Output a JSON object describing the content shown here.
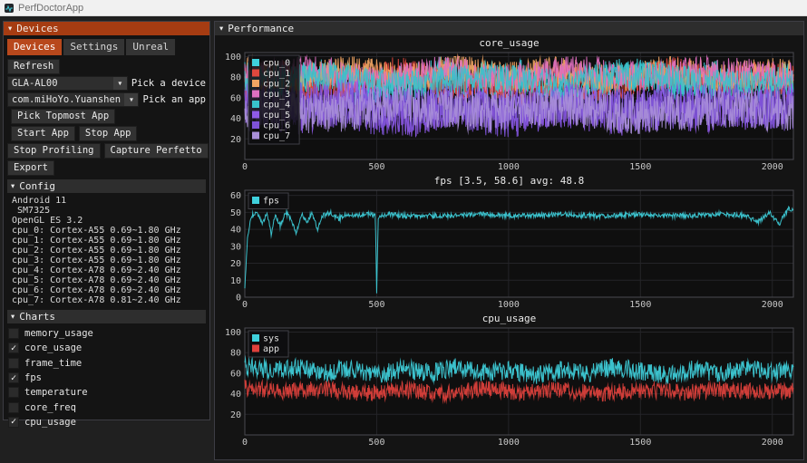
{
  "window_title": "PerfDoctorApp",
  "icons": {
    "collapse": "▼",
    "combo_arrow": "▼",
    "check": "✓"
  },
  "devices_window": {
    "title": "Devices",
    "tabs": [
      "Devices",
      "Settings",
      "Unreal"
    ],
    "active_tab": "Devices",
    "refresh_label": "Refresh",
    "device_combo": {
      "value": "GLA-AL00",
      "label": "Pick a device"
    },
    "app_combo": {
      "value": "com.miHoYo.Yuanshen",
      "label": "Pick an app"
    },
    "buttons": {
      "pick_topmost": "Pick Topmost App",
      "start_app": "Start App",
      "stop_app": "Stop App",
      "stop_profiling": "Stop Profiling",
      "capture_perfetto": "Capture Perfetto",
      "export": "Export"
    },
    "config": {
      "header": "Config",
      "lines": [
        "Android 11",
        " SM7325",
        "OpenGL ES 3.2",
        "cpu_0: Cortex-A55 0.69~1.80 GHz",
        "cpu_1: Cortex-A55 0.69~1.80 GHz",
        "cpu_2: Cortex-A55 0.69~1.80 GHz",
        "cpu_3: Cortex-A55 0.69~1.80 GHz",
        "cpu_4: Cortex-A78 0.69~2.40 GHz",
        "cpu_5: Cortex-A78 0.69~2.40 GHz",
        "cpu_6: Cortex-A78 0.69~2.40 GHz",
        "cpu_7: Cortex-A78 0.81~2.40 GHz"
      ]
    },
    "charts_section": {
      "header": "Charts",
      "items": [
        {
          "label": "memory_usage",
          "checked": false
        },
        {
          "label": "core_usage",
          "checked": true
        },
        {
          "label": "frame_time",
          "checked": false
        },
        {
          "label": "fps",
          "checked": true
        },
        {
          "label": "temperature",
          "checked": false
        },
        {
          "label": "core_freq",
          "checked": false
        },
        {
          "label": "cpu_usage",
          "checked": true
        }
      ]
    }
  },
  "performance_window": {
    "title": "Performance"
  },
  "chart_data": [
    {
      "id": "core_usage",
      "type": "scatter",
      "title": "core_usage",
      "xlabel": "",
      "ylabel": "",
      "xlim": [
        0,
        2080
      ],
      "ylim": [
        0,
        104
      ],
      "x_ticks": [
        0,
        500,
        1000,
        1500,
        2000
      ],
      "y_ticks": [
        20,
        40,
        60,
        80,
        100
      ],
      "clamp": [
        0,
        100
      ],
      "grid": true,
      "legend_position": "inside-top-left",
      "dx": 2,
      "seed": 7,
      "series": [
        {
          "name": "cpu_0",
          "color": "#3fd0dc",
          "noise": 17,
          "keypoints": [
            [
              0,
              78
            ],
            [
              150,
              70
            ],
            [
              300,
              82
            ],
            [
              450,
              66
            ],
            [
              600,
              75
            ],
            [
              750,
              85
            ],
            [
              900,
              72
            ],
            [
              1050,
              80
            ],
            [
              1200,
              68
            ],
            [
              1350,
              78
            ],
            [
              1500,
              84
            ],
            [
              1650,
              74
            ],
            [
              1800,
              80
            ],
            [
              1950,
              72
            ],
            [
              2080,
              78
            ]
          ]
        },
        {
          "name": "cpu_1",
          "color": "#e0483e",
          "noise": 17,
          "keypoints": [
            [
              0,
              72
            ],
            [
              150,
              80
            ],
            [
              300,
              68
            ],
            [
              450,
              78
            ],
            [
              600,
              84
            ],
            [
              750,
              70
            ],
            [
              900,
              78
            ],
            [
              1050,
              66
            ],
            [
              1200,
              80
            ],
            [
              1350,
              72
            ],
            [
              1500,
              78
            ],
            [
              1650,
              84
            ],
            [
              1800,
              70
            ],
            [
              1950,
              80
            ],
            [
              2080,
              74
            ]
          ]
        },
        {
          "name": "cpu_2",
          "color": "#f2a563",
          "noise": 15,
          "keypoints": [
            [
              0,
              85
            ],
            [
              200,
              76
            ],
            [
              400,
              88
            ],
            [
              600,
              78
            ],
            [
              800,
              90
            ],
            [
              1000,
              80
            ],
            [
              1200,
              86
            ],
            [
              1400,
              76
            ],
            [
              1600,
              88
            ],
            [
              1800,
              80
            ],
            [
              2080,
              85
            ]
          ]
        },
        {
          "name": "cpu_3",
          "color": "#de6fc0",
          "noise": 15,
          "keypoints": [
            [
              0,
              80
            ],
            [
              250,
              88
            ],
            [
              500,
              76
            ],
            [
              750,
              86
            ],
            [
              1000,
              78
            ],
            [
              1250,
              88
            ],
            [
              1500,
              80
            ],
            [
              1750,
              86
            ],
            [
              2080,
              80
            ]
          ]
        },
        {
          "name": "cpu_4",
          "color": "#38c2cc",
          "noise": 15,
          "keypoints": [
            [
              0,
              74
            ],
            [
              300,
              82
            ],
            [
              600,
              70
            ],
            [
              900,
              80
            ],
            [
              1200,
              74
            ],
            [
              1500,
              82
            ],
            [
              1800,
              72
            ],
            [
              2080,
              78
            ]
          ]
        },
        {
          "name": "cpu_5",
          "color": "#8f5ae8",
          "noise": 22,
          "keypoints": [
            [
              0,
              55
            ],
            [
              200,
              45
            ],
            [
              400,
              58
            ],
            [
              600,
              42
            ],
            [
              800,
              52
            ],
            [
              1000,
              46
            ],
            [
              1200,
              55
            ],
            [
              1400,
              44
            ],
            [
              1600,
              52
            ],
            [
              1800,
              46
            ],
            [
              2080,
              52
            ]
          ]
        },
        {
          "name": "cpu_6",
          "color": "#7e52d8",
          "noise": 22,
          "keypoints": [
            [
              0,
              48
            ],
            [
              250,
              56
            ],
            [
              500,
              44
            ],
            [
              750,
              52
            ],
            [
              1000,
              42
            ],
            [
              1250,
              52
            ],
            [
              1500,
              46
            ],
            [
              1750,
              54
            ],
            [
              2080,
              48
            ]
          ]
        },
        {
          "name": "cpu_7",
          "color": "#a98fd9",
          "noise": 20,
          "keypoints": [
            [
              0,
              50
            ],
            [
              300,
              44
            ],
            [
              600,
              54
            ],
            [
              900,
              46
            ],
            [
              1200,
              52
            ],
            [
              1500,
              44
            ],
            [
              1800,
              52
            ],
            [
              2080,
              46
            ]
          ]
        }
      ]
    },
    {
      "id": "fps",
      "type": "line",
      "title": "fps [3.5, 58.6] avg: 48.8",
      "stats": {
        "min": 3.5,
        "max": 58.6,
        "avg": 48.8
      },
      "xlabel": "",
      "ylabel": "",
      "xlim": [
        0,
        2080
      ],
      "ylim": [
        0,
        63
      ],
      "x_ticks": [
        0,
        500,
        1000,
        1500,
        2000
      ],
      "y_ticks": [
        0,
        10,
        20,
        30,
        40,
        50,
        60
      ],
      "clamp": [
        0,
        58.6
      ],
      "grid": true,
      "legend_position": "inside-top-left",
      "dx": 2,
      "seed": 21,
      "series": [
        {
          "name": "fps",
          "color": "#3fd0dc",
          "noise": 1.4,
          "keypoints": [
            [
              0,
              5
            ],
            [
              10,
              34
            ],
            [
              25,
              48
            ],
            [
              45,
              50
            ],
            [
              65,
              44
            ],
            [
              85,
              49
            ],
            [
              100,
              37
            ],
            [
              115,
              48
            ],
            [
              135,
              42
            ],
            [
              155,
              50
            ],
            [
              175,
              46
            ],
            [
              195,
              38
            ],
            [
              215,
              49
            ],
            [
              235,
              44
            ],
            [
              255,
              50
            ],
            [
              275,
              40
            ],
            [
              295,
              48
            ],
            [
              325,
              50
            ],
            [
              355,
              46
            ],
            [
              385,
              49
            ],
            [
              425,
              48
            ],
            [
              465,
              49
            ],
            [
              495,
              48
            ],
            [
              500,
              3.5
            ],
            [
              506,
              47
            ],
            [
              540,
              49
            ],
            [
              600,
              48
            ],
            [
              700,
              48
            ],
            [
              800,
              48
            ],
            [
              900,
              49
            ],
            [
              1000,
              48
            ],
            [
              1100,
              48
            ],
            [
              1200,
              49
            ],
            [
              1300,
              48
            ],
            [
              1400,
              48
            ],
            [
              1500,
              49
            ],
            [
              1600,
              48
            ],
            [
              1700,
              48
            ],
            [
              1800,
              49
            ],
            [
              1900,
              48
            ],
            [
              1945,
              44
            ],
            [
              1990,
              50
            ],
            [
              2025,
              43
            ],
            [
              2060,
              52
            ]
          ]
        }
      ]
    },
    {
      "id": "cpu_usage",
      "type": "line",
      "title": "cpu_usage",
      "xlabel": "",
      "ylabel": "",
      "xlim": [
        0,
        2080
      ],
      "ylim": [
        0,
        104
      ],
      "x_ticks": [
        0,
        500,
        1000,
        1500,
        2000
      ],
      "y_ticks": [
        20,
        40,
        60,
        80,
        100
      ],
      "clamp": [
        0,
        100
      ],
      "grid": true,
      "legend_position": "inside-top-left",
      "dx": 2,
      "seed": 33,
      "series": [
        {
          "name": "sys",
          "color": "#3fd0dc",
          "noise": 9,
          "keypoints": [
            [
              0,
              68
            ],
            [
              100,
              62
            ],
            [
              200,
              66
            ],
            [
              300,
              60
            ],
            [
              400,
              65
            ],
            [
              500,
              58
            ],
            [
              600,
              64
            ],
            [
              700,
              60
            ],
            [
              800,
              66
            ],
            [
              900,
              60
            ],
            [
              1000,
              63
            ],
            [
              1100,
              58
            ],
            [
              1200,
              64
            ],
            [
              1300,
              60
            ],
            [
              1400,
              66
            ],
            [
              1500,
              62
            ],
            [
              1600,
              58
            ],
            [
              1700,
              64
            ],
            [
              1800,
              60
            ],
            [
              1900,
              65
            ],
            [
              2000,
              62
            ],
            [
              2080,
              63
            ]
          ]
        },
        {
          "name": "app",
          "color": "#e0413c",
          "noise": 8,
          "keypoints": [
            [
              0,
              46
            ],
            [
              150,
              42
            ],
            [
              300,
              45
            ],
            [
              450,
              40
            ],
            [
              600,
              44
            ],
            [
              750,
              40
            ],
            [
              900,
              45
            ],
            [
              1050,
              41
            ],
            [
              1200,
              44
            ],
            [
              1350,
              40
            ],
            [
              1500,
              44
            ],
            [
              1650,
              41
            ],
            [
              1800,
              44
            ],
            [
              1950,
              42
            ],
            [
              2080,
              43
            ]
          ]
        }
      ]
    }
  ],
  "colors": {
    "devices_titlebar": "#a63c12",
    "active_tab": "#b8481c",
    "window_bg": "#141414",
    "plot_bg": "#0f0f0f",
    "accent_cyan": "#3fd0dc",
    "accent_red": "#e0483e"
  }
}
